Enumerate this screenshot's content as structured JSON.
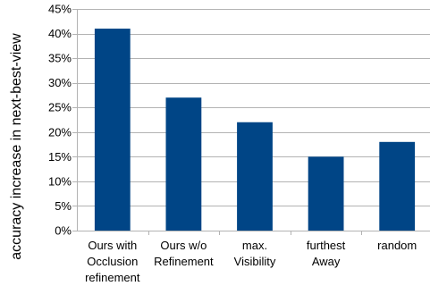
{
  "chart_data": {
    "type": "bar",
    "categories": [
      [
        "Ours with",
        "Occlusion",
        "refinement"
      ],
      [
        "Ours w/o",
        "Refinement"
      ],
      [
        "max.",
        "Visibility"
      ],
      [
        "furthest",
        "Away"
      ],
      [
        "random"
      ]
    ],
    "values": [
      41,
      27,
      22,
      15,
      18
    ],
    "ylabel": "accuracy increase in next-best-view",
    "xlabel": "",
    "title": "",
    "ylim": [
      0,
      45
    ],
    "ytick_step": 5,
    "ytick_format": "percent",
    "grid": "horizontal",
    "bar_color": "#004586",
    "gridline_color": "#b3b3b3",
    "axis_color": "#b3b3b3"
  }
}
